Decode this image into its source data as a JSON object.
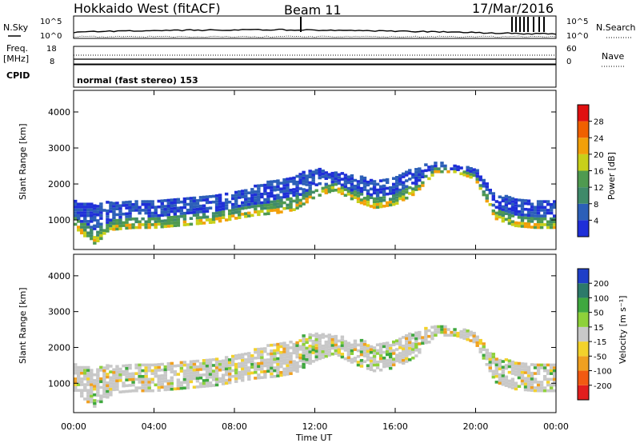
{
  "header": {
    "station": "Hokkaido West (fitACF)",
    "beam": "Beam 11",
    "date": "17/Mar/2016"
  },
  "top_panels": {
    "nsky_label": "N.Sky",
    "nsky_ticks": [
      "10^5",
      "10^0"
    ],
    "nsearch_label": "N.Search",
    "nsearch_ticks": [
      "10^5",
      "10^0"
    ],
    "freq_label": "Freq.",
    "freq_unit": "[MHz]",
    "freq_ticks": [
      "18",
      "8"
    ],
    "nave_label": "Nave",
    "nave_ticks": [
      "60",
      "0"
    ],
    "cpid_label": "CPID",
    "cpid_text": "normal (fast stereo) 153"
  },
  "x_axis": {
    "label": "Time UT",
    "ticks": [
      "00:00",
      "04:00",
      "08:00",
      "12:00",
      "16:00",
      "20:00",
      "00:00"
    ]
  },
  "colors": {
    "power_scale": [
      "#1f2fd8",
      "#2c5fb8",
      "#3f8a6a",
      "#4f9a50",
      "#c8d01a",
      "#f2a00a",
      "#f06000",
      "#e01010"
    ],
    "velocity_scale": [
      "#e21e1e",
      "#f25a12",
      "#f0a020",
      "#f3d22b",
      "#c8c8c8",
      "#8ed13a",
      "#3fa83f",
      "#2c7a6a",
      "#1f3fc8"
    ]
  },
  "chart_data": [
    {
      "type": "heatmap",
      "panel": "power",
      "ylabel": "Slant Range [km]",
      "yticks": [
        "4000",
        "3000",
        "2000",
        "1000"
      ],
      "ylim": [
        180,
        4600
      ],
      "xlim_hours": [
        0,
        24
      ],
      "colorbar": {
        "label": "Power [dB]",
        "ticks": [
          "28",
          "24",
          "20",
          "16",
          "12",
          "8",
          "4"
        ],
        "range": [
          0,
          32
        ]
      },
      "echo_band": {
        "hours": [
          0,
          1,
          2,
          3,
          4,
          5,
          6,
          7,
          8,
          9,
          10,
          11,
          12,
          13,
          14,
          15,
          16,
          17,
          18,
          19,
          20,
          21,
          22,
          23,
          24
        ],
        "lower_km": [
          800,
          300,
          700,
          750,
          750,
          800,
          850,
          900,
          1000,
          1100,
          1150,
          1250,
          1600,
          1800,
          1500,
          1300,
          1400,
          1700,
          2300,
          2300,
          2100,
          1000,
          800,
          750,
          750
        ],
        "upper_km": [
          1500,
          1400,
          1500,
          1500,
          1550,
          1600,
          1650,
          1700,
          1800,
          1900,
          2100,
          2200,
          2400,
          2300,
          2200,
          2100,
          2200,
          2400,
          2600,
          2500,
          2400,
          1700,
          1600,
          1550,
          1500
        ],
        "typical_power_db": 10
      }
    },
    {
      "type": "heatmap",
      "panel": "velocity",
      "ylabel": "Slant Range [km]",
      "yticks": [
        "4000",
        "3000",
        "2000",
        "1000"
      ],
      "ylim": [
        180,
        4600
      ],
      "xlim_hours": [
        0,
        24
      ],
      "colorbar": {
        "label": "Velocity [m s⁻¹]",
        "ticks": [
          "200",
          "100",
          "50",
          "15",
          "-15",
          "-50",
          "-100",
          "-200"
        ],
        "range": [
          -250,
          250
        ]
      },
      "echo_band": {
        "hours": [
          0,
          1,
          2,
          3,
          4,
          5,
          6,
          7,
          8,
          9,
          10,
          11,
          12,
          13,
          14,
          15,
          16,
          17,
          18,
          19,
          20,
          21,
          22,
          23,
          24
        ],
        "lower_km": [
          800,
          300,
          700,
          750,
          750,
          800,
          850,
          900,
          1000,
          1100,
          1150,
          1250,
          1600,
          1800,
          1500,
          1300,
          1400,
          1700,
          2300,
          2300,
          2100,
          1000,
          800,
          750,
          750
        ],
        "upper_km": [
          1500,
          1400,
          1500,
          1500,
          1550,
          1600,
          1650,
          1700,
          1800,
          1900,
          2100,
          2200,
          2400,
          2300,
          2200,
          2100,
          2200,
          2400,
          2600,
          2500,
          2400,
          1700,
          1600,
          1550,
          1500
        ],
        "typical_velocity_ms": 0
      }
    }
  ]
}
